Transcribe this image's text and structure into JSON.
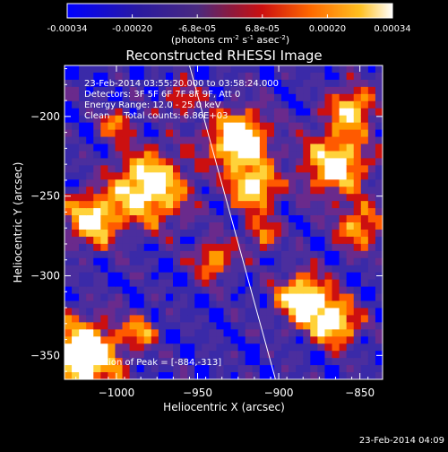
{
  "chart_data": {
    "type": "heatmap",
    "title": "Reconstructed RHESSI Image",
    "colorbar": {
      "ticks": [
        "-0.00034",
        "-0.00020",
        "-6.8e-05",
        "6.8e-05",
        "0.00020",
        "0.00034"
      ],
      "label_main": "(photons cm",
      "label_exp1": "-2",
      "label_mid": " s",
      "label_exp2": "-1",
      "label_end": " asec",
      "label_exp3": "-2",
      "label_close": ")",
      "range": [
        -0.00034,
        0.00034
      ]
    },
    "x_axis": {
      "label": "Heliocentric X (arcsec)",
      "ticks": [
        -1000,
        -950,
        -900,
        -850
      ],
      "tick_labels": [
        "−1000",
        "−950",
        "−900",
        "−850"
      ],
      "range": [
        -1032,
        -836
      ]
    },
    "y_axis": {
      "label": "Heliocentric Y (arcsec)",
      "ticks": [
        -200,
        -250,
        -300,
        -350
      ],
      "tick_labels": [
        "−200",
        "−250",
        "−300",
        "−350"
      ],
      "range": [
        -365,
        -168
      ]
    },
    "annotations": {
      "time_range": "23-Feb-2014 03:55:20.000 to 03:58:24.000",
      "detectors": "Detectors: 3F 5F 6F 7F 8F 9F, Att 0",
      "energy": "Energy Range: 12.0 - 25.0 keV",
      "clean": "Clean     Total counts: 6.86E+03",
      "peak": "Location of Peak = [-884,-313]"
    },
    "limb_line": {
      "from": [
        -955,
        -168
      ],
      "to": [
        -902,
        -365
      ]
    },
    "colors": {
      "background": "#000000",
      "text": "#ffffff",
      "cmap": [
        "#0000ff",
        "#3a2aa8",
        "#4b2e9e",
        "#6a2a8c",
        "#cc1010",
        "#ff5a00",
        "#ff9a00",
        "#ffd23a",
        "#ffffff"
      ]
    }
  },
  "footer_timestamp": "23-Feb-2014 04:09"
}
